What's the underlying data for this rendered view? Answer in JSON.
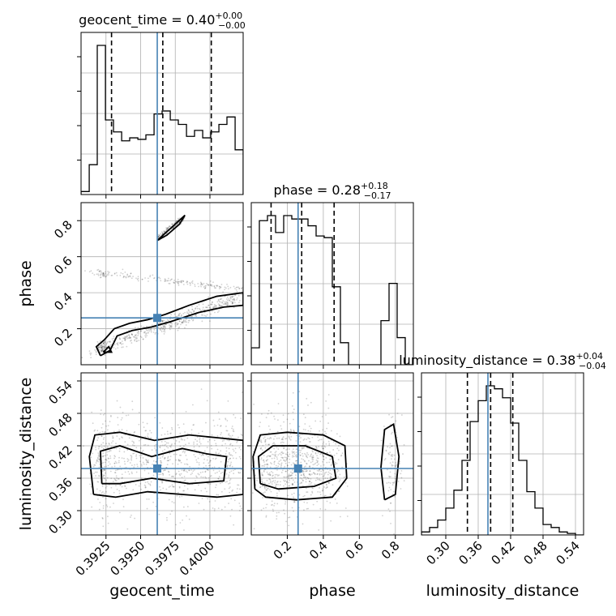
{
  "chart_data": {
    "type": "corner",
    "parameters": [
      "geocent_time",
      "phase",
      "luminosity_distance"
    ],
    "titles": [
      {
        "param": "geocent_time",
        "text": "geocent_time = 0.40",
        "plus": "+0.00",
        "minus": "−0.00"
      },
      {
        "param": "phase",
        "text": "phase = 0.28",
        "plus": "+0.18",
        "minus": "−0.17"
      },
      {
        "param": "luminosity_distance",
        "text": "luminosity_distance = 0.38",
        "plus": "+0.04",
        "minus": "−0.04"
      }
    ],
    "axes": {
      "geocent_time": {
        "range": [
          0.3907,
          0.4024
        ],
        "ticks": [
          0.3925,
          0.395,
          0.3975,
          0.4
        ],
        "tick_labels": [
          "0.3925",
          "0.3950",
          "0.3975",
          "0.4000"
        ]
      },
      "phase": {
        "range": [
          0.0,
          0.9
        ],
        "ticks": [
          0.2,
          0.4,
          0.6,
          0.8
        ],
        "tick_labels": [
          "0.2",
          "0.4",
          "0.6",
          "0.8"
        ]
      },
      "luminosity_distance": {
        "range": [
          0.255,
          0.555
        ],
        "ticks": [
          0.3,
          0.36,
          0.42,
          0.48,
          0.54
        ],
        "tick_labels": [
          "0.30",
          "0.36",
          "0.42",
          "0.48",
          "0.54"
        ]
      }
    },
    "truths": {
      "geocent_time": 0.3962,
      "phase": 0.26,
      "luminosity_distance": 0.378
    },
    "quantiles": {
      "geocent_time": [
        0.3929,
        0.3966,
        0.4001
      ],
      "phase": [
        0.11,
        0.28,
        0.46
      ],
      "luminosity_distance": [
        0.34,
        0.383,
        0.424
      ]
    },
    "histograms": {
      "geocent_time": {
        "edges": [
          0.3907,
          0.39129,
          0.39187,
          0.39246,
          0.39304,
          0.39363,
          0.39421,
          0.3948,
          0.39538,
          0.39597,
          0.39655,
          0.39714,
          0.39772,
          0.39831,
          0.39889,
          0.39948,
          0.40006,
          0.40065,
          0.40123,
          0.40182,
          0.4024
        ],
        "counts": [
          0.02,
          0.2,
          1.0,
          0.5,
          0.42,
          0.36,
          0.38,
          0.37,
          0.4,
          0.54,
          0.56,
          0.5,
          0.47,
          0.39,
          0.43,
          0.38,
          0.42,
          0.47,
          0.52,
          0.3
        ]
      },
      "phase": {
        "edges": [
          0.0,
          0.045,
          0.09,
          0.135,
          0.18,
          0.225,
          0.27,
          0.315,
          0.36,
          0.405,
          0.45,
          0.495,
          0.54,
          0.585,
          0.63,
          0.675,
          0.72,
          0.765,
          0.81,
          0.855,
          0.9
        ],
        "counts": [
          0.1,
          0.85,
          0.88,
          0.78,
          0.88,
          0.86,
          0.86,
          0.82,
          0.76,
          0.75,
          0.46,
          0.13,
          0.0,
          0.0,
          0.0,
          0.0,
          0.26,
          0.48,
          0.16,
          0.0
        ]
      },
      "luminosity_distance": {
        "edges": [
          0.255,
          0.27,
          0.285,
          0.3,
          0.315,
          0.33,
          0.345,
          0.36,
          0.375,
          0.39,
          0.405,
          0.42,
          0.435,
          0.45,
          0.465,
          0.48,
          0.495,
          0.51,
          0.525,
          0.54,
          0.555
        ],
        "counts": [
          0.02,
          0.05,
          0.1,
          0.18,
          0.3,
          0.5,
          0.76,
          0.9,
          1.0,
          0.98,
          0.92,
          0.75,
          0.5,
          0.29,
          0.18,
          0.07,
          0.05,
          0.02,
          0.01,
          0.0
        ]
      }
    },
    "contours_2d": {
      "geocent_time__phase": [
        [
          [
            0.3921,
            0.05
          ],
          [
            0.3918,
            0.1
          ],
          [
            0.3924,
            0.14
          ],
          [
            0.3931,
            0.2
          ],
          [
            0.3942,
            0.23
          ],
          [
            0.3955,
            0.25
          ],
          [
            0.3968,
            0.28
          ],
          [
            0.3985,
            0.33
          ],
          [
            0.4005,
            0.38
          ],
          [
            0.4024,
            0.4
          ],
          [
            0.4024,
            0.33
          ],
          [
            0.401,
            0.32
          ],
          [
            0.3992,
            0.29
          ],
          [
            0.3972,
            0.24
          ],
          [
            0.3958,
            0.21
          ],
          [
            0.3944,
            0.19
          ],
          [
            0.3933,
            0.16
          ],
          [
            0.3928,
            0.08
          ],
          [
            0.3921,
            0.05
          ]
        ],
        [
          [
            0.3923,
            0.07
          ],
          [
            0.3927,
            0.1
          ],
          [
            0.3929,
            0.07
          ],
          [
            0.3923,
            0.07
          ]
        ],
        [
          [
            0.3962,
            0.69
          ],
          [
            0.3972,
            0.76
          ],
          [
            0.3982,
            0.83
          ],
          [
            0.3978,
            0.78
          ],
          [
            0.3969,
            0.72
          ],
          [
            0.3962,
            0.69
          ]
        ]
      ],
      "geocent_time__luminosity_distance": [
        [
          [
            0.3916,
            0.33
          ],
          [
            0.3913,
            0.4
          ],
          [
            0.3917,
            0.44
          ],
          [
            0.3935,
            0.445
          ],
          [
            0.396,
            0.43
          ],
          [
            0.3985,
            0.44
          ],
          [
            0.4005,
            0.435
          ],
          [
            0.4024,
            0.43
          ],
          [
            0.4024,
            0.33
          ],
          [
            0.4005,
            0.325
          ],
          [
            0.398,
            0.33
          ],
          [
            0.3955,
            0.335
          ],
          [
            0.3932,
            0.325
          ],
          [
            0.3916,
            0.33
          ]
        ],
        [
          [
            0.3922,
            0.35
          ],
          [
            0.3921,
            0.41
          ],
          [
            0.3935,
            0.42
          ],
          [
            0.3958,
            0.4
          ],
          [
            0.398,
            0.415
          ],
          [
            0.3998,
            0.405
          ],
          [
            0.4012,
            0.4
          ],
          [
            0.401,
            0.355
          ],
          [
            0.3985,
            0.35
          ],
          [
            0.3958,
            0.36
          ],
          [
            0.3935,
            0.35
          ],
          [
            0.3922,
            0.35
          ]
        ]
      ],
      "phase__luminosity_distance": [
        [
          [
            0.02,
            0.34
          ],
          [
            0.01,
            0.4
          ],
          [
            0.05,
            0.44
          ],
          [
            0.2,
            0.445
          ],
          [
            0.4,
            0.44
          ],
          [
            0.52,
            0.42
          ],
          [
            0.53,
            0.36
          ],
          [
            0.45,
            0.325
          ],
          [
            0.25,
            0.32
          ],
          [
            0.08,
            0.325
          ],
          [
            0.02,
            0.34
          ]
        ],
        [
          [
            0.05,
            0.35
          ],
          [
            0.04,
            0.4
          ],
          [
            0.12,
            0.42
          ],
          [
            0.3,
            0.42
          ],
          [
            0.45,
            0.4
          ],
          [
            0.47,
            0.36
          ],
          [
            0.35,
            0.345
          ],
          [
            0.15,
            0.34
          ],
          [
            0.05,
            0.35
          ]
        ],
        [
          [
            0.74,
            0.32
          ],
          [
            0.72,
            0.38
          ],
          [
            0.74,
            0.45
          ],
          [
            0.79,
            0.46
          ],
          [
            0.82,
            0.4
          ],
          [
            0.8,
            0.33
          ],
          [
            0.74,
            0.32
          ]
        ]
      ]
    },
    "grid": true
  }
}
